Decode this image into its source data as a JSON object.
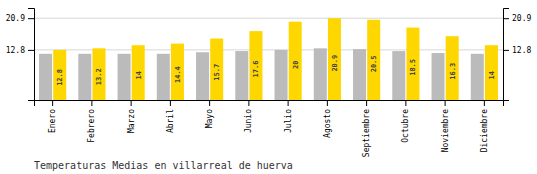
{
  "chart_data": {
    "type": "bar",
    "title": "Temperaturas Medias en villarreal de huerva",
    "categories": [
      "Enero",
      "Febrero",
      "Marzo",
      "Abril",
      "Mayo",
      "Junio",
      "Julio",
      "Agosto",
      "Septiembre",
      "Octubre",
      "Noviembre",
      "Diciembre"
    ],
    "series": [
      {
        "color": "#BBBBBB",
        "values": [
          11.8,
          11.8,
          11.8,
          11.8,
          12.2,
          12.5,
          12.8,
          13.2,
          13.0,
          12.5,
          12.0,
          11.8
        ]
      },
      {
        "color": "#FFD700",
        "values": [
          12.8,
          13.2,
          14.0,
          14.4,
          15.7,
          17.6,
          20.0,
          20.9,
          20.5,
          18.5,
          16.3,
          14.0
        ],
        "data_labels": true
      }
    ],
    "ylim": [
      0,
      23.5
    ],
    "yticks": [
      12.8,
      20.9
    ],
    "y2lim": [
      0,
      23.5
    ],
    "y2ticks": [
      12.8,
      20.9
    ],
    "grid": true
  }
}
